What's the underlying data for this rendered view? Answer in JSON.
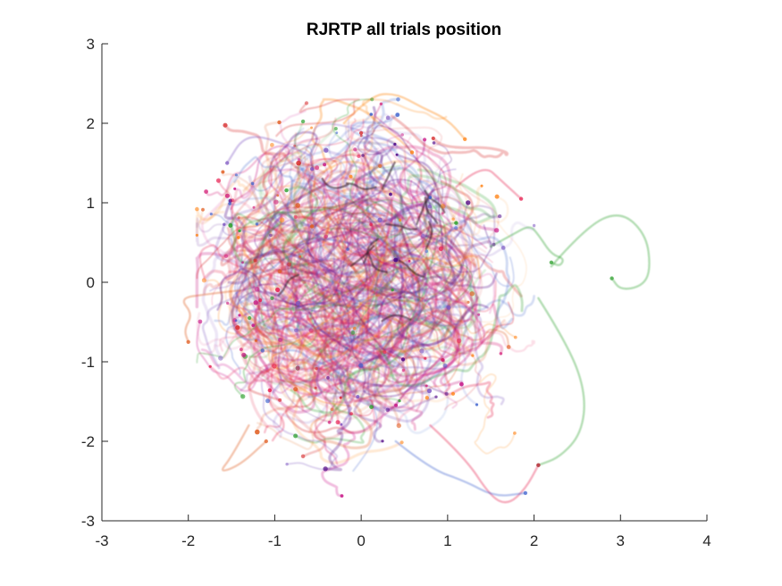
{
  "chart_data": {
    "type": "line",
    "title": "RJRTP all trials position",
    "xlabel": "",
    "ylabel": "",
    "xlim": [
      -3,
      4
    ],
    "ylim": [
      -3,
      3
    ],
    "x_ticks": [
      -3,
      -2,
      -1,
      0,
      1,
      2,
      3,
      4
    ],
    "y_ticks": [
      -3,
      -2,
      -1,
      0,
      1,
      2,
      3
    ],
    "x_tick_labels": [
      "-3",
      "-2",
      "-1",
      "0",
      "1",
      "2",
      "3",
      "4"
    ],
    "y_tick_labels": [
      "-3",
      "-2",
      "-1",
      "0",
      "1",
      "2",
      "3"
    ],
    "grid": false,
    "legend": "none",
    "trial_cloud": {
      "center": [
        -0.05,
        0.05
      ],
      "x_extent": [
        -2.2,
        3.4
      ],
      "y_extent": [
        -2.8,
        2.4
      ],
      "series_colors": [
        "#e6194b",
        "#d4247a",
        "#ff7f0e",
        "#e05a1c",
        "#3a5fcd",
        "#7e57c2",
        "#2ca02c",
        "#c71585",
        "#d62728",
        "#4b0082"
      ]
    },
    "series": [
      {
        "color": "#2ca02c",
        "points": [
          [
            1.5,
            0.45
          ],
          [
            1.75,
            0.6
          ],
          [
            1.95,
            0.72
          ],
          [
            2.05,
            0.6
          ],
          [
            2.2,
            0.35
          ],
          [
            2.35,
            0.3
          ],
          [
            2.3,
            0.2
          ],
          [
            2.2,
            0.25
          ]
        ]
      },
      {
        "color": "#2ca02c",
        "points": [
          [
            2.2,
            0.2
          ],
          [
            2.6,
            0.7
          ],
          [
            3.0,
            0.9
          ],
          [
            3.3,
            0.6
          ],
          [
            3.35,
            0.15
          ],
          [
            3.25,
            -0.05
          ],
          [
            3.0,
            -0.1
          ],
          [
            2.9,
            0.05
          ]
        ]
      },
      {
        "color": "#2ca02c",
        "points": [
          [
            2.05,
            -0.2
          ],
          [
            2.4,
            -0.8
          ],
          [
            2.6,
            -1.4
          ],
          [
            2.55,
            -1.9
          ],
          [
            2.3,
            -2.2
          ],
          [
            2.05,
            -2.3
          ]
        ]
      },
      {
        "color": "#e05a1c",
        "points": [
          [
            -1.4,
            -0.1
          ],
          [
            -1.8,
            -0.15
          ],
          [
            -2.1,
            -0.2
          ],
          [
            -1.95,
            -0.4
          ],
          [
            -2.05,
            -0.6
          ],
          [
            -2.0,
            -0.75
          ]
        ]
      },
      {
        "color": "#e05a1c",
        "points": [
          [
            -1.3,
            -1.8
          ],
          [
            -1.5,
            -2.2
          ],
          [
            -1.65,
            -2.4
          ],
          [
            -1.4,
            -2.3
          ],
          [
            -1.1,
            -2.0
          ]
        ]
      },
      {
        "color": "#e6194b",
        "points": [
          [
            0.8,
            -1.8
          ],
          [
            1.2,
            -2.2
          ],
          [
            1.5,
            -2.7
          ],
          [
            1.7,
            -2.8
          ],
          [
            1.9,
            -2.6
          ],
          [
            2.05,
            -2.3
          ]
        ]
      },
      {
        "color": "#3a5fcd",
        "points": [
          [
            0.4,
            -2.0
          ],
          [
            0.8,
            -2.35
          ],
          [
            1.2,
            -2.5
          ],
          [
            1.55,
            -2.7
          ],
          [
            1.9,
            -2.65
          ]
        ]
      },
      {
        "color": "#ff7f0e",
        "points": [
          [
            -0.2,
            2.0
          ],
          [
            0.1,
            2.35
          ],
          [
            0.4,
            2.38
          ],
          [
            0.7,
            2.2
          ],
          [
            1.0,
            2.05
          ],
          [
            1.2,
            1.8
          ]
        ]
      },
      {
        "color": "#e6194b",
        "points": [
          [
            1.1,
            1.2
          ],
          [
            1.4,
            1.5
          ],
          [
            1.65,
            1.25
          ],
          [
            1.85,
            1.05
          ]
        ]
      },
      {
        "color": "#7e57c2",
        "points": [
          [
            -0.6,
            1.6
          ],
          [
            -1.0,
            1.8
          ],
          [
            -1.35,
            1.85
          ],
          [
            -1.55,
            1.5
          ]
        ]
      }
    ]
  }
}
